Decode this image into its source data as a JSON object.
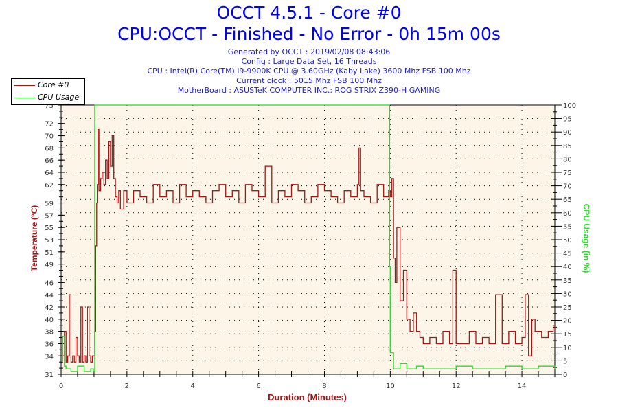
{
  "header": {
    "title": "OCCT 4.5.1 - Core #0",
    "subtitle": "CPU:OCCT - Finished - No Error - 0h 15m 00s",
    "info_lines": [
      "Generated by OCCT : 2019/02/08 08:43:06",
      "Config : Large Data Set, 16 Threads",
      "CPU : Intel(R) Core(TM) i9-9900K CPU @ 3.60GHz (Kaby Lake) 3600 Mhz FSB 100 Mhz",
      "Current clock : 5015 Mhz FSB 100 Mhz",
      "MotherBoard : ASUSTeK COMPUTER INC.: ROG STRIX Z390-H GAMING"
    ]
  },
  "legend": {
    "items": [
      {
        "label": "Core #0",
        "color": "#a01818"
      },
      {
        "label": "CPU Usage",
        "color": "#22dd22"
      }
    ]
  },
  "axes": {
    "ylabel_left": "Temperature (°C)",
    "ylabel_right": "CPU Usage (in %)",
    "xlabel": "Duration (Minutes)"
  },
  "colors": {
    "plot_bg": "#fdf6e8",
    "temp": "#a01818",
    "cpu": "#22dd22",
    "axis": "#000000",
    "tick_label": "#333333"
  },
  "chart_data": {
    "type": "line",
    "title": "OCCT 4.5.1 - Core #0",
    "subtitle": "CPU:OCCT - Finished - No Error - 0h 15m 00s",
    "xlabel": "Duration (Minutes)",
    "ylabel": "Temperature (°C)",
    "ylabel_right": "CPU Usage (in %)",
    "xlim": [
      0,
      15
    ],
    "ylim": [
      31,
      75
    ],
    "ylim_right": [
      0,
      100
    ],
    "x_ticks": [
      0,
      2,
      4,
      6,
      8,
      10,
      12,
      14
    ],
    "y_ticks_left": [
      31,
      34,
      36,
      38,
      40,
      42,
      44,
      46,
      49,
      51,
      53,
      55,
      57,
      59,
      62,
      64,
      66,
      68,
      70,
      72,
      75
    ],
    "y_ticks_right": [
      0,
      5,
      10,
      15,
      20,
      25,
      30,
      35,
      40,
      45,
      50,
      55,
      60,
      65,
      70,
      75,
      80,
      85,
      90,
      95,
      100
    ],
    "grid": true,
    "legend_position": "top-left",
    "series": [
      {
        "name": "Core #0",
        "axis": "left",
        "color": "#a01818",
        "x": [
          0,
          0.05,
          0.1,
          0.15,
          0.2,
          0.25,
          0.3,
          0.35,
          0.4,
          0.45,
          0.5,
          0.55,
          0.6,
          0.65,
          0.7,
          0.75,
          0.8,
          0.85,
          0.9,
          0.95,
          1.0,
          1.02,
          1.05,
          1.08,
          1.1,
          1.12,
          1.15,
          1.2,
          1.25,
          1.3,
          1.35,
          1.4,
          1.45,
          1.5,
          1.55,
          1.6,
          1.65,
          1.7,
          1.75,
          1.8,
          1.9,
          2.0,
          2.2,
          2.4,
          2.6,
          2.8,
          3.0,
          3.2,
          3.4,
          3.6,
          3.8,
          4.0,
          4.2,
          4.4,
          4.6,
          4.8,
          5.0,
          5.2,
          5.4,
          5.6,
          5.8,
          6.0,
          6.2,
          6.4,
          6.6,
          6.8,
          7.0,
          7.2,
          7.4,
          7.6,
          7.8,
          8.0,
          8.2,
          8.4,
          8.6,
          8.8,
          9.0,
          9.05,
          9.1,
          9.2,
          9.4,
          9.6,
          9.8,
          9.95,
          10.0,
          10.05,
          10.1,
          10.15,
          10.2,
          10.3,
          10.4,
          10.5,
          10.6,
          10.7,
          10.8,
          10.9,
          11.0,
          11.2,
          11.4,
          11.6,
          11.8,
          11.9,
          12.0,
          12.2,
          12.4,
          12.6,
          12.8,
          13.0,
          13.2,
          13.4,
          13.6,
          13.8,
          14.0,
          14.1,
          14.2,
          14.3,
          14.4,
          14.6,
          14.8,
          14.95,
          15.0
        ],
        "values": [
          35,
          34,
          38,
          33,
          34,
          44,
          33,
          34,
          33,
          37,
          34,
          33,
          42,
          33,
          34,
          33,
          42,
          34,
          33,
          34,
          34,
          38,
          52,
          59,
          62,
          71,
          61,
          63,
          64,
          62,
          66,
          63,
          69,
          65,
          70,
          63,
          60,
          59,
          61,
          58,
          61,
          59,
          61,
          60,
          59,
          62,
          60,
          61,
          59,
          62,
          60,
          61,
          60,
          59,
          61,
          62,
          60,
          61,
          59,
          62,
          61,
          60,
          65,
          59,
          61,
          60,
          62,
          61,
          59,
          60,
          62,
          61,
          60,
          59,
          61,
          60,
          62,
          68,
          61,
          60,
          59,
          62,
          60,
          61,
          60,
          63,
          50,
          46,
          55,
          43,
          48,
          40,
          38,
          41,
          38,
          37,
          36,
          37,
          36,
          38,
          36,
          48,
          36,
          36,
          38,
          36,
          37,
          36,
          44,
          36,
          38,
          36,
          37,
          44,
          34,
          40,
          38,
          37,
          38,
          39,
          38
        ]
      },
      {
        "name": "CPU Usage",
        "axis": "right",
        "color": "#22dd22",
        "x": [
          0,
          0.05,
          0.1,
          0.15,
          0.3,
          0.5,
          0.7,
          0.9,
          0.98,
          1.0,
          1.02,
          9.96,
          9.98,
          10.0,
          10.1,
          10.3,
          10.5,
          10.8,
          11.0,
          11.5,
          12.0,
          12.5,
          13.0,
          13.5,
          14.0,
          14.5,
          15.0
        ],
        "values": [
          5,
          14,
          3,
          2,
          1,
          3,
          1,
          2,
          1,
          1,
          100,
          100,
          40,
          8,
          2,
          4,
          2,
          3,
          2,
          2,
          3,
          2,
          2,
          3,
          2,
          3,
          2
        ]
      }
    ]
  }
}
